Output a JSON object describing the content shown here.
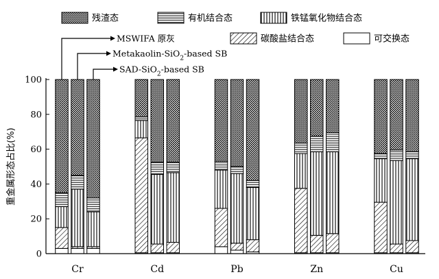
{
  "chart_data": {
    "type": "stacked-bar",
    "ylabel": "重金属形态占比(%)",
    "ylim": [
      0,
      100
    ],
    "yticks": [
      0,
      20,
      40,
      60,
      80,
      100
    ],
    "categories": [
      "Cr",
      "Cd",
      "Pb",
      "Zn",
      "Cu"
    ],
    "samples": [
      "MSWIFA 原灰",
      "Metakaolin-SiO2-based SB",
      "SAD-SiO2-based SB"
    ],
    "annotations": [
      {
        "base": "MSWIFA 原灰",
        "sub": "",
        "tail": ""
      },
      {
        "base": "Metakaolin-SiO",
        "sub": "2",
        "tail": "-based SB"
      },
      {
        "base": "SAD-SiO",
        "sub": "2",
        "tail": "-based SB"
      }
    ],
    "series": [
      {
        "name": "可交换态",
        "pattern": "blank",
        "values": [
          [
            3,
            3,
            3
          ],
          [
            0.5,
            0.5,
            0.5
          ],
          [
            4,
            2,
            1
          ],
          [
            0.5,
            0.5,
            0.5
          ],
          [
            0.5,
            0.5,
            0.5
          ]
        ]
      },
      {
        "name": "碳酸盐结合态",
        "pattern": "diag",
        "values": [
          [
            12,
            1,
            1
          ],
          [
            66,
            5,
            6
          ],
          [
            22,
            4,
            7
          ],
          [
            37,
            10,
            11
          ],
          [
            29,
            5,
            7
          ]
        ]
      },
      {
        "name": "铁锰氧化物结合态",
        "pattern": "vert",
        "values": [
          [
            12,
            33,
            20
          ],
          [
            10,
            40,
            40
          ],
          [
            22,
            40,
            30
          ],
          [
            20,
            48,
            47
          ],
          [
            25,
            48,
            47
          ]
        ]
      },
      {
        "name": "有机结合态",
        "pattern": "horiz",
        "values": [
          [
            8,
            8,
            8
          ],
          [
            2,
            7,
            6
          ],
          [
            5,
            4,
            4
          ],
          [
            6,
            9,
            11
          ],
          [
            3,
            6,
            4
          ]
        ]
      },
      {
        "name": "残渣态",
        "pattern": "dots",
        "values": [
          [
            65,
            55,
            68
          ],
          [
            21.5,
            47.5,
            47.5
          ],
          [
            47,
            50,
            58
          ],
          [
            36.5,
            32.5,
            30.5
          ],
          [
            42.5,
            40.5,
            41.5
          ]
        ]
      }
    ],
    "legend": [
      {
        "name": "残渣态",
        "pattern": "dots"
      },
      {
        "name": "有机结合态",
        "pattern": "horiz"
      },
      {
        "name": "铁锰氧化物结合态",
        "pattern": "vert"
      },
      {
        "name": "碳酸盐结合态",
        "pattern": "diag"
      },
      {
        "name": "可交换态",
        "pattern": "blank"
      }
    ]
  }
}
